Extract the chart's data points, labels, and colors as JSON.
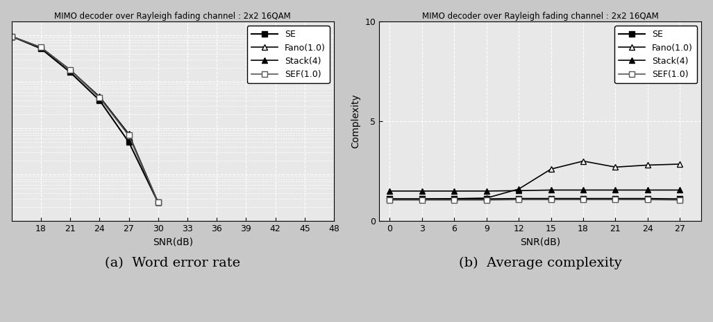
{
  "title_left": "MIMO decoder over Rayleigh fading channel : 2x2 16QAM",
  "title_right": "MIMO decoder over Rayleigh fading channel : 2x2 16QAM",
  "caption_left": "(a)  Word error rate",
  "caption_right": "(b)  Average complexity",
  "xlabel": "SNR(dB)",
  "ylabel_left": "",
  "ylabel_right": "Complexity",
  "wer_snr": [
    15,
    18,
    21,
    24,
    27,
    30
  ],
  "wer_SE": [
    0.95,
    0.52,
    0.16,
    0.04,
    0.005,
    0.00025
  ],
  "wer_Fano": [
    0.95,
    0.55,
    0.18,
    0.046,
    0.007,
    0.00025
  ],
  "wer_Stack": [
    0.95,
    0.55,
    0.18,
    0.048,
    0.0075,
    0.00025
  ],
  "wer_SEF": [
    0.95,
    0.55,
    0.18,
    0.046,
    0.007,
    0.00025
  ],
  "wer_ylim_low": 0.0001,
  "wer_ylim_high": 2.0,
  "wer_xlim_low": 15,
  "wer_xlim_high": 48,
  "wer_xticks": [
    18,
    21,
    24,
    27,
    30,
    33,
    36,
    39,
    42,
    45,
    48
  ],
  "cplx_snr": [
    0,
    3,
    6,
    9,
    12,
    15,
    18,
    21,
    24,
    27
  ],
  "cplx_SE": [
    1.1,
    1.1,
    1.1,
    1.1,
    1.12,
    1.12,
    1.12,
    1.12,
    1.12,
    1.1
  ],
  "cplx_Fano": [
    1.1,
    1.1,
    1.12,
    1.15,
    1.6,
    2.6,
    3.0,
    2.7,
    2.8,
    2.85
  ],
  "cplx_Stack": [
    1.5,
    1.5,
    1.5,
    1.5,
    1.52,
    1.55,
    1.55,
    1.55,
    1.55,
    1.55
  ],
  "cplx_SEF": [
    1.05,
    1.05,
    1.05,
    1.05,
    1.07,
    1.07,
    1.07,
    1.07,
    1.07,
    1.05
  ],
  "cplx_ylim_low": 0,
  "cplx_ylim_high": 10,
  "cplx_xlim_low": -1,
  "cplx_xlim_high": 29,
  "cplx_xticks": [
    0,
    3,
    6,
    9,
    12,
    15,
    18,
    21,
    24,
    27
  ],
  "cplx_yticks": [
    0,
    5,
    10
  ],
  "fig_bg": "#c8c8c8",
  "plot_bg": "#e8e8e8",
  "grid_color": "#ffffff",
  "title_fontsize": 8.5,
  "label_fontsize": 10,
  "legend_fontsize": 9,
  "caption_fontsize": 14,
  "tick_fontsize": 9
}
